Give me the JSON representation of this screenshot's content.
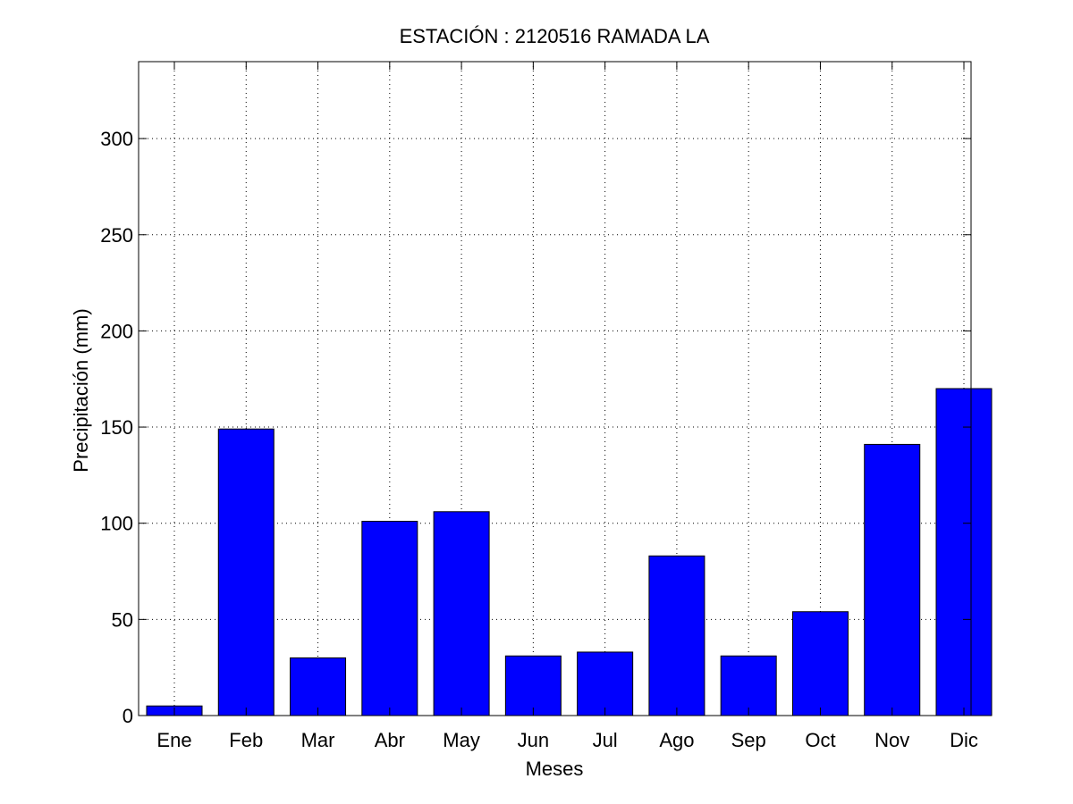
{
  "chart_data": {
    "type": "bar",
    "title": "ESTACIÓN :  2120516  RAMADA LA",
    "xlabel": "Meses",
    "ylabel": "Precipitación (mm)",
    "categories": [
      "Ene",
      "Feb",
      "Mar",
      "Abr",
      "May",
      "Jun",
      "Jul",
      "Ago",
      "Sep",
      "Oct",
      "Nov",
      "Dic"
    ],
    "values": [
      5,
      149,
      30,
      101,
      106,
      31,
      33,
      83,
      31,
      54,
      141,
      170
    ],
    "ylim": [
      0,
      340
    ],
    "yticks": [
      0,
      50,
      100,
      150,
      200,
      250,
      300
    ],
    "grid": true,
    "bar_color": "#0000ff",
    "edge_color": "#000000"
  }
}
